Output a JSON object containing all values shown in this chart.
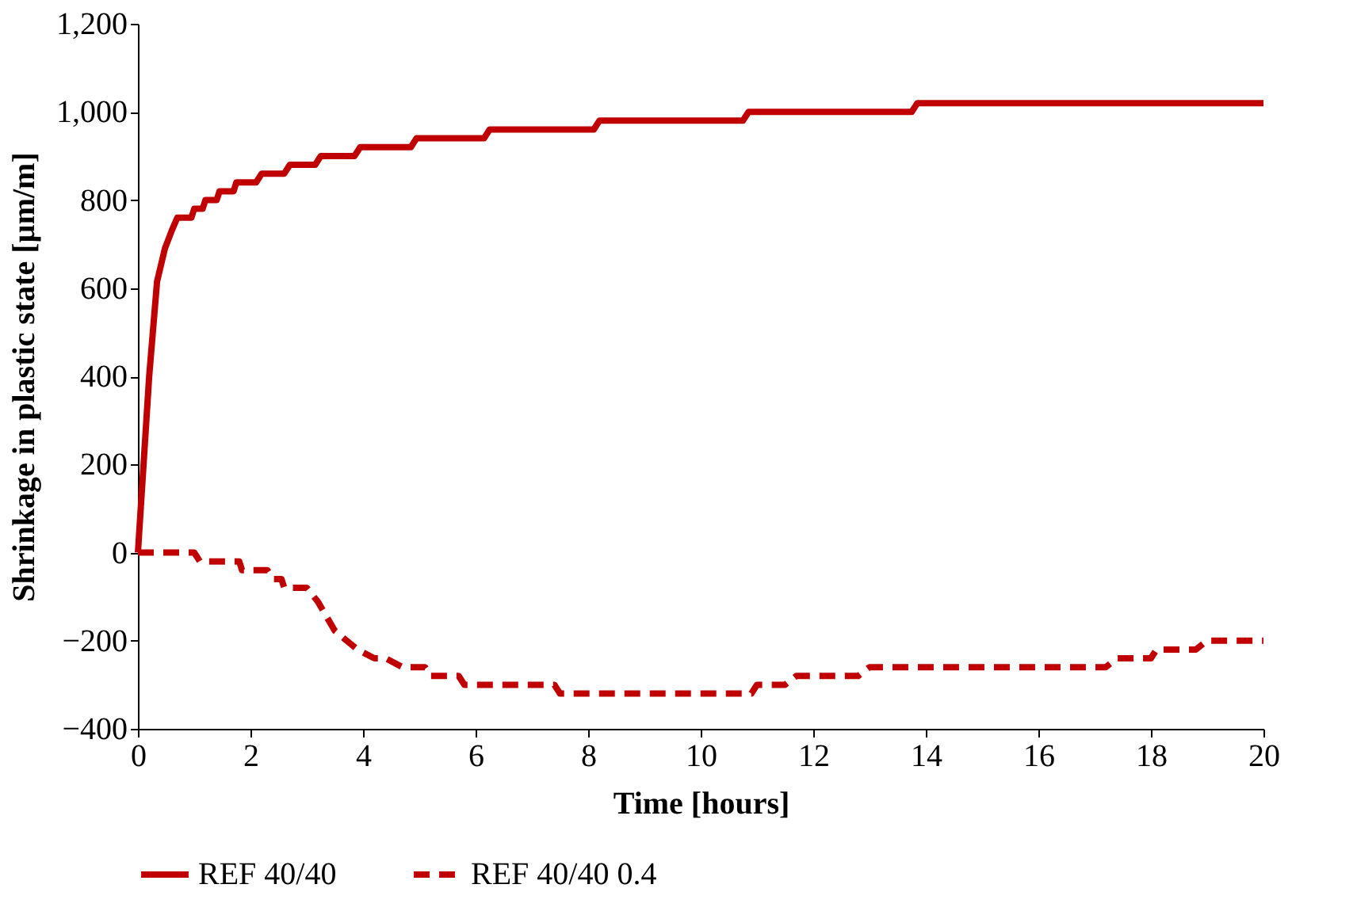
{
  "chart_data": {
    "type": "line",
    "xlabel": "Time [hours]",
    "ylabel": "Shrinkage in plastic state [µm/m]",
    "xlim": [
      0,
      20
    ],
    "xticks": [
      0,
      2,
      4,
      6,
      8,
      10,
      12,
      14,
      16,
      18,
      20
    ],
    "ylim": [
      -400,
      1200
    ],
    "yticks": [
      -400,
      -200,
      0,
      200,
      400,
      600,
      800,
      {
        "value": 1000,
        "label": "1,000"
      },
      {
        "value": 1200,
        "label": "1,200"
      }
    ],
    "grid": false,
    "legend": "bottom",
    "marker": "none",
    "series": [
      {
        "name": "REF 40/40",
        "color": "#c00000",
        "line_style": "solid",
        "x": [
          0,
          0.2,
          0.34,
          0.48,
          0.6,
          0.7,
          0.95,
          1.0,
          1.15,
          1.2,
          1.4,
          1.45,
          1.7,
          1.75,
          2.1,
          2.2,
          2.6,
          2.7,
          3.15,
          3.25,
          3.85,
          3.95,
          4.85,
          4.95,
          6.15,
          6.25,
          8.1,
          8.2,
          10.75,
          10.85,
          13.75,
          13.85,
          20
        ],
        "values": [
          0,
          400,
          615,
          690,
          730,
          760,
          760,
          780,
          780,
          800,
          800,
          820,
          820,
          840,
          840,
          860,
          860,
          880,
          880,
          900,
          900,
          920,
          920,
          940,
          940,
          960,
          960,
          980,
          980,
          1000,
          1000,
          1020,
          1020
        ]
      },
      {
        "name": "REF 40/40 0.4",
        "color": "#c00000",
        "line_style": "dashed",
        "x": [
          0,
          1.0,
          1.1,
          1.8,
          1.85,
          2.3,
          2.4,
          2.55,
          2.6,
          3.0,
          3.2,
          3.5,
          3.9,
          4.2,
          4.4,
          4.7,
          5.1,
          5.2,
          5.7,
          5.8,
          7.4,
          7.5,
          10.9,
          11.0,
          11.5,
          11.7,
          12.8,
          13.0,
          17.2,
          17.4,
          18.0,
          18.1,
          18.8,
          19.0,
          20
        ],
        "values": [
          0,
          0,
          -20,
          -20,
          -40,
          -40,
          -60,
          -60,
          -80,
          -80,
          -112,
          -178,
          -220,
          -240,
          -240,
          -260,
          -260,
          -280,
          -280,
          -300,
          -300,
          -320,
          -320,
          -300,
          -300,
          -280,
          -280,
          -260,
          -260,
          -240,
          -240,
          -220,
          -220,
          -200,
          -200
        ]
      }
    ]
  }
}
